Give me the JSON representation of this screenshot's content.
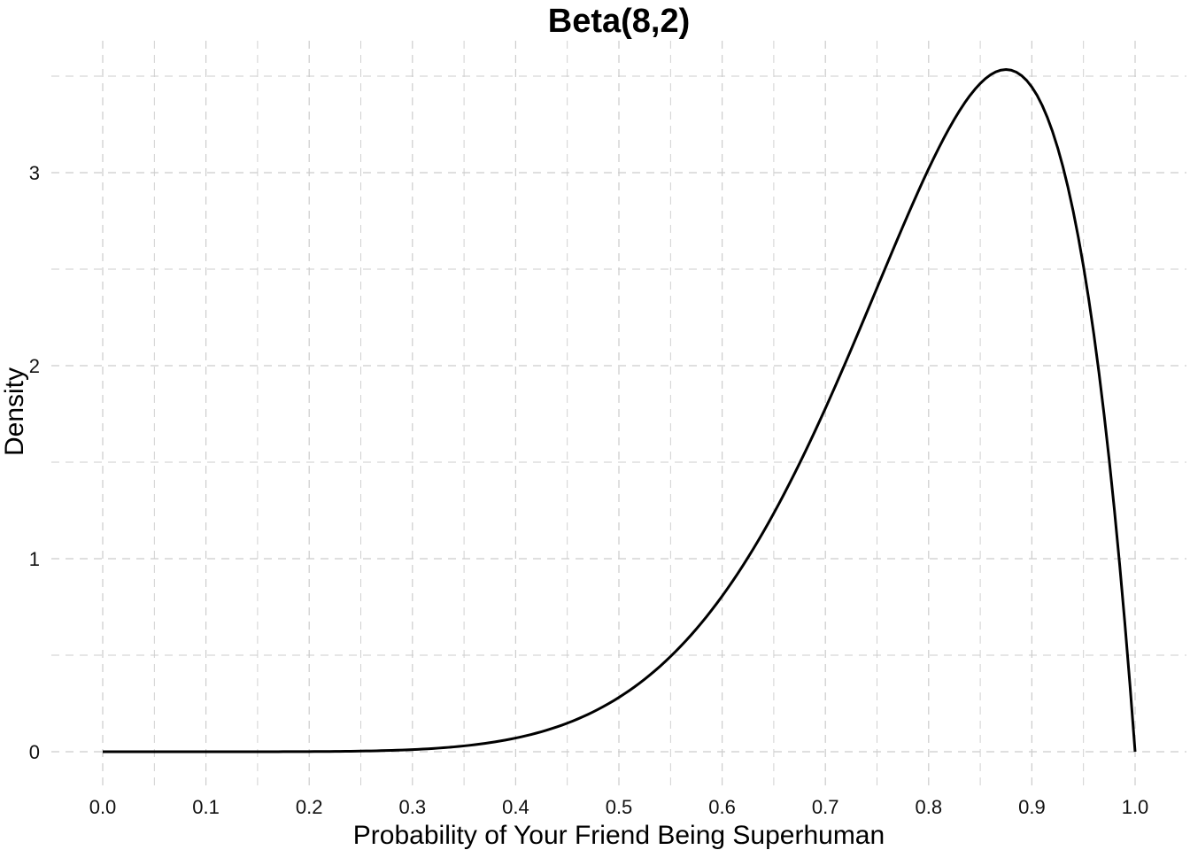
{
  "chart_data": {
    "type": "line",
    "title": "Beta(8,2)",
    "xlabel": "Probability of Your Friend Being Superhuman",
    "ylabel": "Density",
    "xlim": [
      0.0,
      1.0
    ],
    "ylim": [
      0,
      3.5
    ],
    "x_ticks": [
      "0.0",
      "0.1",
      "0.2",
      "0.3",
      "0.4",
      "0.5",
      "0.6",
      "0.7",
      "0.8",
      "0.9",
      "1.0"
    ],
    "y_ticks": [
      "0",
      "1",
      "2",
      "3"
    ],
    "grid": true,
    "grid_style": "dashed",
    "legend": "none",
    "line_color": "#000000",
    "grid_color": "#cccccc",
    "series": [
      {
        "x": [
          0.0,
          0.05,
          0.1,
          0.15,
          0.2,
          0.25,
          0.3,
          0.35,
          0.4,
          0.45,
          0.5,
          0.55,
          0.6,
          0.65,
          0.7,
          0.75,
          0.8,
          0.825,
          0.85,
          0.875,
          0.9,
          0.925,
          0.95,
          0.975,
          1.0
        ],
        "values": [
          0.0,
          0.0,
          0.0,
          0.0,
          0.0,
          0.003,
          0.016,
          0.047,
          0.126,
          0.3,
          0.28,
          0.49,
          0.81,
          1.26,
          1.85,
          2.52,
          3.2,
          3.41,
          3.53,
          3.52,
          3.44,
          3.08,
          2.36,
          1.25,
          0.0
        ]
      }
    ]
  }
}
